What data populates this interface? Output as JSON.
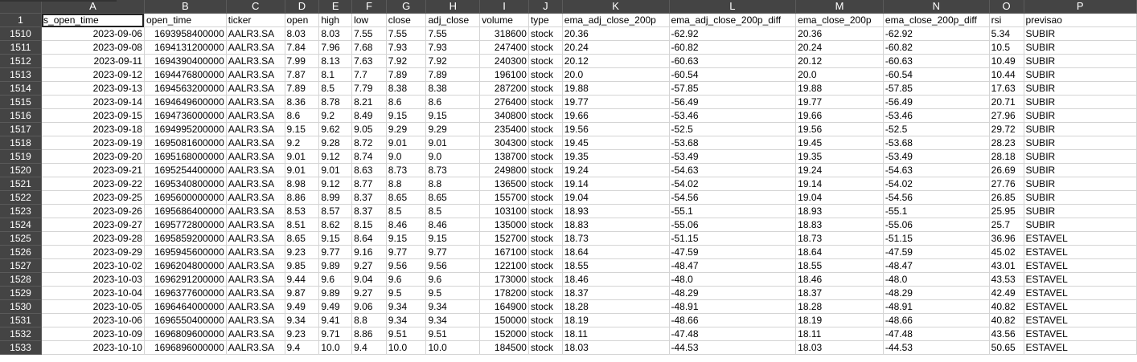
{
  "columns": [
    "A",
    "B",
    "C",
    "D",
    "E",
    "F",
    "G",
    "H",
    "I",
    "J",
    "K",
    "L",
    "M",
    "N",
    "O",
    "P"
  ],
  "header_row_number": "1",
  "header": [
    "s_open_time",
    "open_time",
    "ticker",
    "open",
    "high",
    "low",
    "close",
    "adj_close",
    "volume",
    "type",
    "ema_adj_close_200p",
    "ema_adj_close_200p_diff",
    "ema_close_200p",
    "ema_close_200p_diff",
    "rsi",
    "previsao"
  ],
  "rows": [
    {
      "n": "1510",
      "cells": [
        "2023-09-06",
        "1693958400000",
        "AALR3.SA",
        "8.03",
        "8.03",
        "7.55",
        "7.55",
        "7.55",
        "318600",
        "stock",
        "20.36",
        "-62.92",
        "20.36",
        "-62.92",
        "5.34",
        "SUBIR"
      ]
    },
    {
      "n": "1511",
      "cells": [
        "2023-09-08",
        "1694131200000",
        "AALR3.SA",
        "7.84",
        "7.96",
        "7.68",
        "7.93",
        "7.93",
        "247400",
        "stock",
        "20.24",
        "-60.82",
        "20.24",
        "-60.82",
        "10.5",
        "SUBIR"
      ]
    },
    {
      "n": "1512",
      "cells": [
        "2023-09-11",
        "1694390400000",
        "AALR3.SA",
        "7.99",
        "8.13",
        "7.63",
        "7.92",
        "7.92",
        "240300",
        "stock",
        "20.12",
        "-60.63",
        "20.12",
        "-60.63",
        "10.49",
        "SUBIR"
      ]
    },
    {
      "n": "1513",
      "cells": [
        "2023-09-12",
        "1694476800000",
        "AALR3.SA",
        "7.87",
        "8.1",
        "7.7",
        "7.89",
        "7.89",
        "196100",
        "stock",
        "20.0",
        "-60.54",
        "20.0",
        "-60.54",
        "10.44",
        "SUBIR"
      ]
    },
    {
      "n": "1514",
      "cells": [
        "2023-09-13",
        "1694563200000",
        "AALR3.SA",
        "7.89",
        "8.5",
        "7.79",
        "8.38",
        "8.38",
        "287200",
        "stock",
        "19.88",
        "-57.85",
        "19.88",
        "-57.85",
        "17.63",
        "SUBIR"
      ]
    },
    {
      "n": "1515",
      "cells": [
        "2023-09-14",
        "1694649600000",
        "AALR3.SA",
        "8.36",
        "8.78",
        "8.21",
        "8.6",
        "8.6",
        "276400",
        "stock",
        "19.77",
        "-56.49",
        "19.77",
        "-56.49",
        "20.71",
        "SUBIR"
      ]
    },
    {
      "n": "1516",
      "cells": [
        "2023-09-15",
        "1694736000000",
        "AALR3.SA",
        "8.6",
        "9.2",
        "8.49",
        "9.15",
        "9.15",
        "340800",
        "stock",
        "19.66",
        "-53.46",
        "19.66",
        "-53.46",
        "27.96",
        "SUBIR"
      ]
    },
    {
      "n": "1517",
      "cells": [
        "2023-09-18",
        "1694995200000",
        "AALR3.SA",
        "9.15",
        "9.62",
        "9.05",
        "9.29",
        "9.29",
        "235400",
        "stock",
        "19.56",
        "-52.5",
        "19.56",
        "-52.5",
        "29.72",
        "SUBIR"
      ]
    },
    {
      "n": "1518",
      "cells": [
        "2023-09-19",
        "1695081600000",
        "AALR3.SA",
        "9.2",
        "9.28",
        "8.72",
        "9.01",
        "9.01",
        "304300",
        "stock",
        "19.45",
        "-53.68",
        "19.45",
        "-53.68",
        "28.23",
        "SUBIR"
      ]
    },
    {
      "n": "1519",
      "cells": [
        "2023-09-20",
        "1695168000000",
        "AALR3.SA",
        "9.01",
        "9.12",
        "8.74",
        "9.0",
        "9.0",
        "138700",
        "stock",
        "19.35",
        "-53.49",
        "19.35",
        "-53.49",
        "28.18",
        "SUBIR"
      ]
    },
    {
      "n": "1520",
      "cells": [
        "2023-09-21",
        "1695254400000",
        "AALR3.SA",
        "9.01",
        "9.01",
        "8.63",
        "8.73",
        "8.73",
        "249800",
        "stock",
        "19.24",
        "-54.63",
        "19.24",
        "-54.63",
        "26.69",
        "SUBIR"
      ]
    },
    {
      "n": "1521",
      "cells": [
        "2023-09-22",
        "1695340800000",
        "AALR3.SA",
        "8.98",
        "9.12",
        "8.77",
        "8.8",
        "8.8",
        "136500",
        "stock",
        "19.14",
        "-54.02",
        "19.14",
        "-54.02",
        "27.76",
        "SUBIR"
      ]
    },
    {
      "n": "1522",
      "cells": [
        "2023-09-25",
        "1695600000000",
        "AALR3.SA",
        "8.86",
        "8.99",
        "8.37",
        "8.65",
        "8.65",
        "155700",
        "stock",
        "19.04",
        "-54.56",
        "19.04",
        "-54.56",
        "26.85",
        "SUBIR"
      ]
    },
    {
      "n": "1523",
      "cells": [
        "2023-09-26",
        "1695686400000",
        "AALR3.SA",
        "8.53",
        "8.57",
        "8.37",
        "8.5",
        "8.5",
        "103100",
        "stock",
        "18.93",
        "-55.1",
        "18.93",
        "-55.1",
        "25.95",
        "SUBIR"
      ]
    },
    {
      "n": "1524",
      "cells": [
        "2023-09-27",
        "1695772800000",
        "AALR3.SA",
        "8.51",
        "8.62",
        "8.15",
        "8.46",
        "8.46",
        "135000",
        "stock",
        "18.83",
        "-55.06",
        "18.83",
        "-55.06",
        "25.7",
        "SUBIR"
      ]
    },
    {
      "n": "1525",
      "cells": [
        "2023-09-28",
        "1695859200000",
        "AALR3.SA",
        "8.65",
        "9.15",
        "8.64",
        "9.15",
        "9.15",
        "152700",
        "stock",
        "18.73",
        "-51.15",
        "18.73",
        "-51.15",
        "36.96",
        "ESTAVEL"
      ]
    },
    {
      "n": "1526",
      "cells": [
        "2023-09-29",
        "1695945600000",
        "AALR3.SA",
        "9.23",
        "9.77",
        "9.16",
        "9.77",
        "9.77",
        "167100",
        "stock",
        "18.64",
        "-47.59",
        "18.64",
        "-47.59",
        "45.02",
        "ESTAVEL"
      ]
    },
    {
      "n": "1527",
      "cells": [
        "2023-10-02",
        "1696204800000",
        "AALR3.SA",
        "9.85",
        "9.89",
        "9.27",
        "9.56",
        "9.56",
        "122100",
        "stock",
        "18.55",
        "-48.47",
        "18.55",
        "-48.47",
        "43.01",
        "ESTAVEL"
      ]
    },
    {
      "n": "1528",
      "cells": [
        "2023-10-03",
        "1696291200000",
        "AALR3.SA",
        "9.44",
        "9.6",
        "9.04",
        "9.6",
        "9.6",
        "173000",
        "stock",
        "18.46",
        "-48.0",
        "18.46",
        "-48.0",
        "43.53",
        "ESTAVEL"
      ]
    },
    {
      "n": "1529",
      "cells": [
        "2023-10-04",
        "1696377600000",
        "AALR3.SA",
        "9.87",
        "9.89",
        "9.27",
        "9.5",
        "9.5",
        "178200",
        "stock",
        "18.37",
        "-48.29",
        "18.37",
        "-48.29",
        "42.49",
        "ESTAVEL"
      ]
    },
    {
      "n": "1530",
      "cells": [
        "2023-10-05",
        "1696464000000",
        "AALR3.SA",
        "9.49",
        "9.49",
        "9.06",
        "9.34",
        "9.34",
        "164900",
        "stock",
        "18.28",
        "-48.91",
        "18.28",
        "-48.91",
        "40.82",
        "ESTAVEL"
      ]
    },
    {
      "n": "1531",
      "cells": [
        "2023-10-06",
        "1696550400000",
        "AALR3.SA",
        "9.34",
        "9.41",
        "8.8",
        "9.34",
        "9.34",
        "150000",
        "stock",
        "18.19",
        "-48.66",
        "18.19",
        "-48.66",
        "40.82",
        "ESTAVEL"
      ]
    },
    {
      "n": "1532",
      "cells": [
        "2023-10-09",
        "1696809600000",
        "AALR3.SA",
        "9.23",
        "9.71",
        "8.86",
        "9.51",
        "9.51",
        "152000",
        "stock",
        "18.11",
        "-47.48",
        "18.11",
        "-47.48",
        "43.56",
        "ESTAVEL"
      ]
    },
    {
      "n": "1533",
      "cells": [
        "2023-10-10",
        "1696896000000",
        "AALR3.SA",
        "9.4",
        "10.0",
        "9.4",
        "10.0",
        "10.0",
        "184500",
        "stock",
        "18.03",
        "-44.53",
        "18.03",
        "-44.53",
        "50.65",
        "ESTAVEL"
      ]
    }
  ]
}
